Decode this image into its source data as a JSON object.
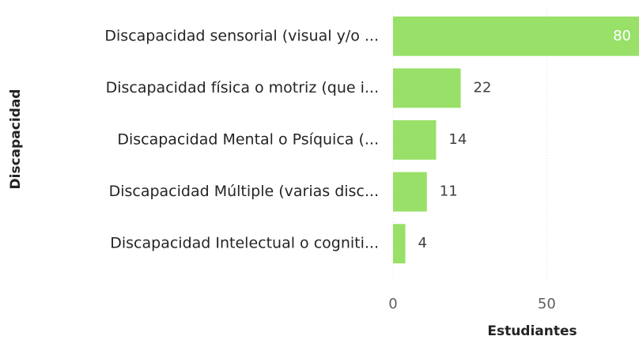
{
  "chart_data": {
    "type": "bar",
    "orientation": "horizontal",
    "categories": [
      "Discapacidad sensorial (visual y/o ...",
      "Discapacidad física o motriz (que i...",
      "Discapacidad Mental o Psíquica (...",
      "Discapacidad Múltiple (varias disc...",
      "Discapacidad Intelectual o cogniti..."
    ],
    "values": [
      80,
      22,
      14,
      11,
      4
    ],
    "color": "#98e068",
    "xlim": [
      0,
      80
    ],
    "xticks": [
      0,
      50
    ],
    "grid": true,
    "xlabel": "Estudiantes",
    "ylabel": "Discapacidad"
  }
}
